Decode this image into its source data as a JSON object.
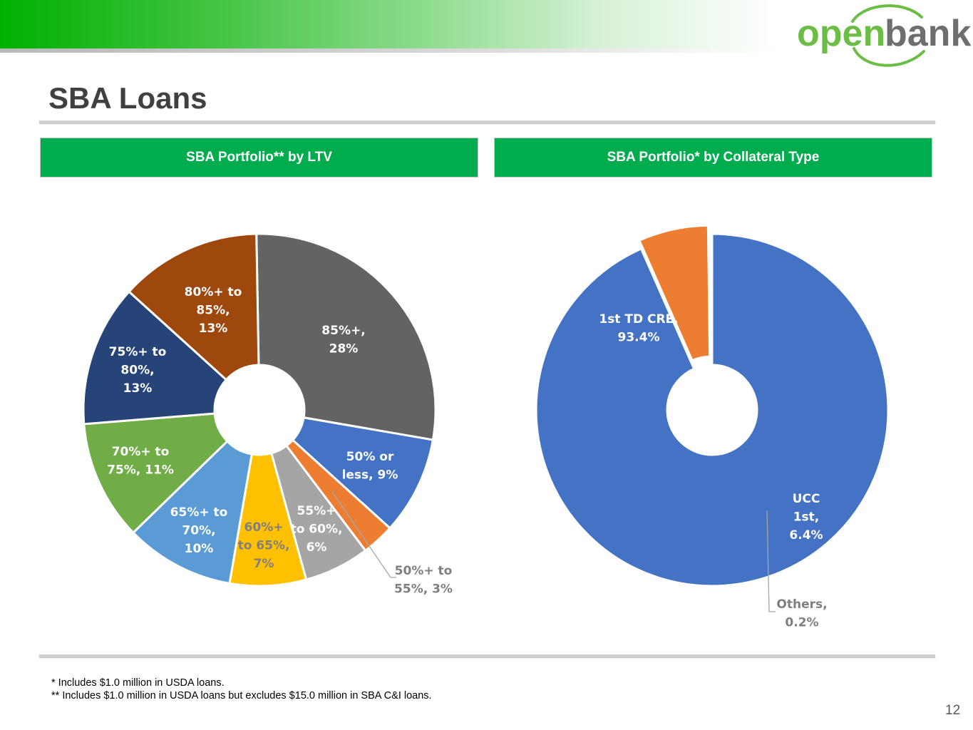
{
  "slide": {
    "title": "SBA Loans",
    "page_number": "12",
    "logo": {
      "word1": "open",
      "word2": "bank"
    },
    "footnotes": [
      "* Includes $1.0 million in USDA loans.",
      "** Includes $1.0 million in USDA loans but excludes $15.0 million in SBA C&I loans."
    ]
  },
  "colors": {
    "brand_green": "#00ac4e",
    "logo_green": "#6cbd45",
    "logo_gray": "#6d6e71"
  },
  "chart_data": [
    {
      "type": "pie",
      "title": "SBA Portfolio** by LTV",
      "slices": [
        {
          "label": [
            "85%+,",
            "28%"
          ],
          "category": "85%+",
          "value": 28,
          "color": "#636363"
        },
        {
          "label": [
            "50% or",
            "less, 9%"
          ],
          "category": "50% or less",
          "value": 9,
          "color": "#4472c4"
        },
        {
          "label": [
            "50%+ to",
            "55%, 3%"
          ],
          "category": "50%+ to 55%",
          "value": 3,
          "color": "#ed7d31"
        },
        {
          "label": [
            "55%+",
            "to 60%,",
            "6%"
          ],
          "category": "55%+ to 60%",
          "value": 6,
          "color": "#a5a5a5"
        },
        {
          "label": [
            "60%+",
            "to 65%,",
            "7%"
          ],
          "category": "60%+ to 65%",
          "value": 7,
          "color": "#ffc000"
        },
        {
          "label": [
            "65%+ to",
            "70%,",
            "10%"
          ],
          "category": "65%+ to 70%",
          "value": 10,
          "color": "#5b9bd5"
        },
        {
          "label": [
            "70%+ to",
            "75%, 11%"
          ],
          "category": "70%+ to 75%",
          "value": 11,
          "color": "#70ad47"
        },
        {
          "label": [
            "75%+ to",
            "80%,",
            "13%"
          ],
          "category": "75%+ to 80%",
          "value": 13,
          "color": "#264478"
        },
        {
          "label": [
            "80%+ to",
            "85%,",
            "13%"
          ],
          "category": "80%+ to 85%",
          "value": 13,
          "color": "#9e480e"
        }
      ]
    },
    {
      "type": "pie",
      "title": "SBA Portfolio* by Collateral Type",
      "slices": [
        {
          "label": [
            "1st TD CRE,",
            "93.4%"
          ],
          "category": "1st TD CRE",
          "value": 93.4,
          "color": "#4472c4"
        },
        {
          "label": [
            "UCC",
            "1st,",
            "6.4%"
          ],
          "category": "UCC 1st",
          "value": 6.4,
          "color": "#ed7d31"
        },
        {
          "label": [
            "Others,",
            "0.2%"
          ],
          "category": "Others",
          "value": 0.2,
          "color": "#a5a5a5"
        }
      ]
    }
  ]
}
